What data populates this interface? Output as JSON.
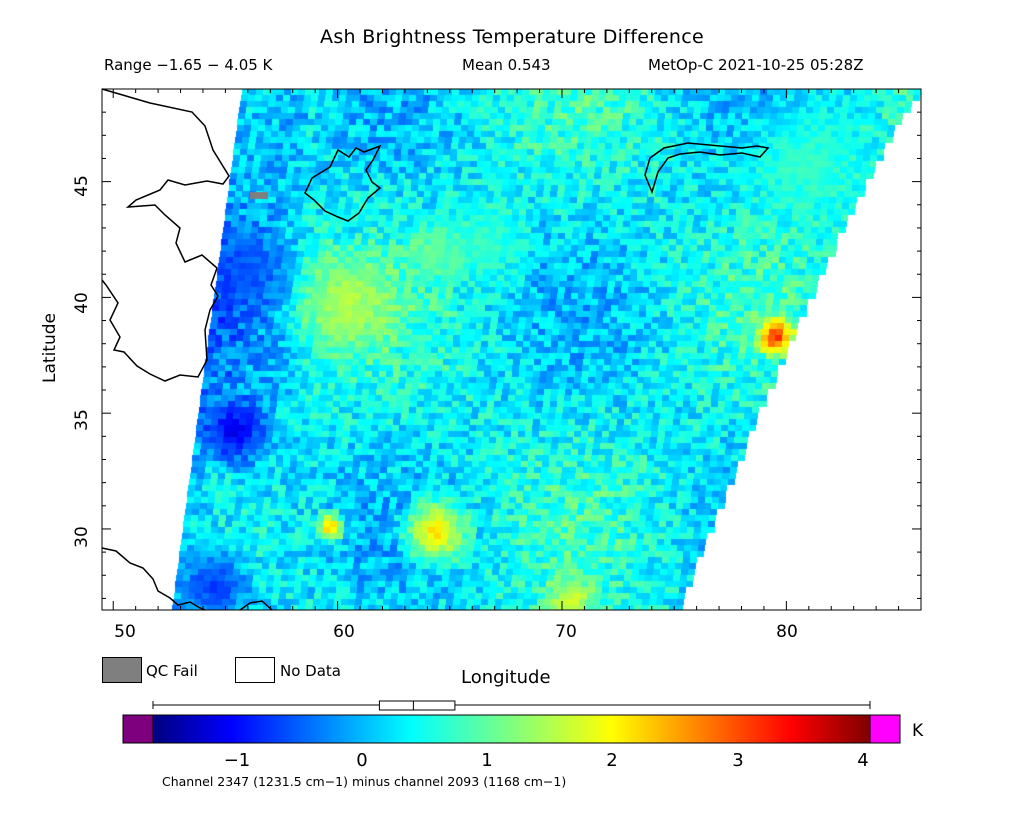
{
  "header": {
    "title": "Ash Brightness Temperature Difference",
    "range_text": "Range −1.65 − 4.05 K",
    "mean_text": "Mean 0.543",
    "satellite_text": "MetOp-C 2021-10-25 05:28Z"
  },
  "map": {
    "lon_range": [
      49.5,
      86
    ],
    "lat_range": [
      26.5,
      49
    ],
    "x_label": "Longitude",
    "y_label": "Latitude",
    "x_ticks": [
      "50",
      "60",
      "70",
      "80"
    ],
    "x_tick_values": [
      50,
      60,
      70,
      80
    ],
    "y_ticks": [
      "45",
      "40",
      "35",
      "30"
    ],
    "y_tick_values": [
      45,
      40,
      35,
      30
    ]
  },
  "legend": {
    "qc_fail_label": "QC Fail",
    "qc_fail_color": "#7f7f7f",
    "no_data_label": "No Data",
    "no_data_color": "#ffffff"
  },
  "colorbar": {
    "min": -1.65,
    "max": 4.05,
    "unit": "K",
    "ticks": [
      "−1",
      "0",
      "1",
      "2",
      "3",
      "4"
    ],
    "tick_values": [
      -1,
      0,
      1,
      2,
      3,
      4
    ],
    "underflow_color": "#7f007f",
    "overflow_color": "#ff00ff",
    "box_q1": 0.15,
    "box_median": 0.42,
    "box_q3": 0.75,
    "title": "Channel 2347 (1231.5 cm−1) minus channel 2093 (1168 cm−1)"
  }
}
